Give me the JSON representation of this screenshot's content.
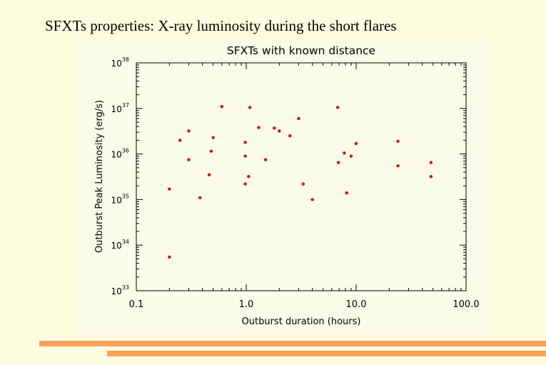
{
  "slide": {
    "title": "SFXTs properties:  X-ray luminosity during the short flares"
  },
  "colors": {
    "background": "#fffde0",
    "plot_panel": "#fbfbe9",
    "accent_bar": "#f7a35c",
    "points": "#cc1010"
  },
  "chart_data": {
    "type": "scatter",
    "title": "SFXTs with known distance",
    "xlabel": "Outburst duration (hours)",
    "ylabel": "Outburst Peak Luminosity (erg/s)",
    "xscale": "log",
    "yscale": "log",
    "xlim": [
      0.1,
      100
    ],
    "ylim": [
      1e+33,
      1e+38
    ],
    "xticks": [
      {
        "value": 0.1,
        "label": "0.1"
      },
      {
        "value": 1,
        "label": "1.0"
      },
      {
        "value": 10,
        "label": "10.0"
      },
      {
        "value": 100,
        "label": "100.0"
      }
    ],
    "yticks": [
      {
        "value": 1e+33,
        "mantissa": "10",
        "exp": "33"
      },
      {
        "value": 1e+34,
        "mantissa": "10",
        "exp": "34"
      },
      {
        "value": 1e+35,
        "mantissa": "10",
        "exp": "35"
      },
      {
        "value": 1e+36,
        "mantissa": "10",
        "exp": "36"
      },
      {
        "value": 1e+37,
        "mantissa": "10",
        "exp": "37"
      },
      {
        "value": 1e+38,
        "mantissa": "10",
        "exp": "38"
      }
    ],
    "grid": false,
    "points": [
      {
        "x": 0.2,
        "y": 1.7e+35
      },
      {
        "x": 0.2,
        "y": 5.5e+33
      },
      {
        "x": 0.25,
        "y": 2e+36
      },
      {
        "x": 0.3,
        "y": 3.2e+36
      },
      {
        "x": 0.3,
        "y": 7.5e+35
      },
      {
        "x": 0.38,
        "y": 1.1e+35
      },
      {
        "x": 0.46,
        "y": 3.5e+35
      },
      {
        "x": 0.48,
        "y": 1.15e+36
      },
      {
        "x": 0.5,
        "y": 2.3e+36
      },
      {
        "x": 0.6,
        "y": 1.1e+37
      },
      {
        "x": 0.98,
        "y": 1.8e+36
      },
      {
        "x": 0.98,
        "y": 9e+35
      },
      {
        "x": 0.98,
        "y": 2.2e+35
      },
      {
        "x": 1.05,
        "y": 3.2e+35
      },
      {
        "x": 1.08,
        "y": 1.05e+37
      },
      {
        "x": 1.3,
        "y": 3.8e+36
      },
      {
        "x": 1.5,
        "y": 7.5e+35
      },
      {
        "x": 1.8,
        "y": 3.7e+36
      },
      {
        "x": 2.0,
        "y": 3.2e+36
      },
      {
        "x": 2.5,
        "y": 2.5e+36
      },
      {
        "x": 3.0,
        "y": 6e+36
      },
      {
        "x": 3.3,
        "y": 2.2e+35
      },
      {
        "x": 4.0,
        "y": 1e+35
      },
      {
        "x": 6.8,
        "y": 1.05e+37
      },
      {
        "x": 6.9,
        "y": 6.5e+35
      },
      {
        "x": 7.8,
        "y": 1.05e+36
      },
      {
        "x": 8.2,
        "y": 1.4e+35
      },
      {
        "x": 9.0,
        "y": 9e+35
      },
      {
        "x": 10.0,
        "y": 1.7e+36
      },
      {
        "x": 24.0,
        "y": 1.9e+36
      },
      {
        "x": 24.0,
        "y": 5.5e+35
      },
      {
        "x": 48.0,
        "y": 6.5e+35
      },
      {
        "x": 48.0,
        "y": 3.2e+35
      }
    ]
  }
}
